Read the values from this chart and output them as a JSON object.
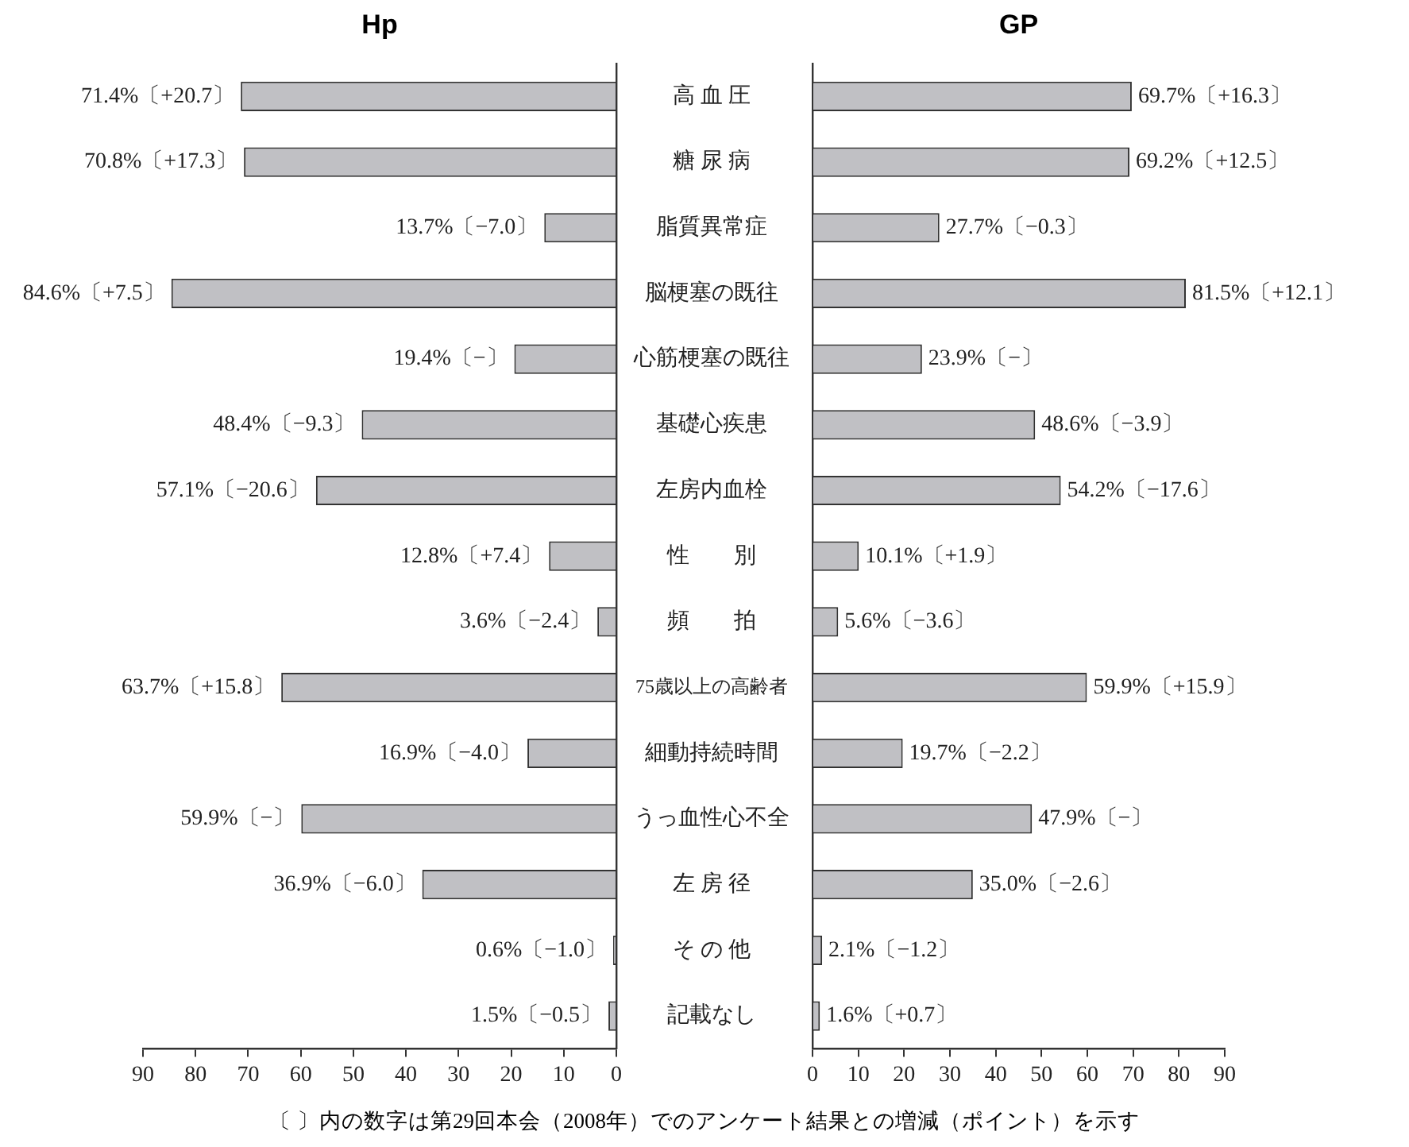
{
  "chart_data": [
    {
      "type": "bar",
      "orientation": "horizontal",
      "title": "Hp",
      "color": "#c0c0c4",
      "xlim": [
        90,
        0
      ],
      "xticks": [
        90,
        80,
        70,
        60,
        50,
        40,
        30,
        20,
        10,
        0
      ],
      "categories": [
        "高 血 圧",
        "糖 尿 病",
        "脂質異常症",
        "脳梗塞の既往",
        "心筋梗塞の既往",
        "基礎心疾患",
        "左房内血栓",
        "性　　別",
        "頻　　拍",
        "75歳以上の高齢者",
        "細動持続時間",
        "うっ血性心不全",
        "左 房 径",
        "そ の 他",
        "記載なし"
      ],
      "values": [
        71.4,
        70.8,
        13.7,
        84.6,
        19.4,
        48.4,
        57.1,
        12.8,
        3.6,
        63.7,
        16.9,
        59.9,
        36.9,
        0.6,
        1.5
      ],
      "value_labels": [
        "71.4%〔+20.7〕",
        "70.8%〔+17.3〕",
        "13.7%〔−7.0〕",
        "84.6%〔+7.5〕",
        "19.4%〔−〕",
        "48.4%〔−9.3〕",
        "57.1%〔−20.6〕",
        "12.8%〔+7.4〕",
        "3.6%〔−2.4〕",
        "63.7%〔+15.8〕",
        "16.9%〔−4.0〕",
        "59.9%〔−〕",
        "36.9%〔−6.0〕",
        "0.6%〔−1.0〕",
        "1.5%〔−0.5〕"
      ],
      "annotations": [
        "〔 〕内の数字は第29回本会（2008年）でのアンケート結果との増減（ポイント）を示す"
      ]
    },
    {
      "type": "bar",
      "orientation": "horizontal",
      "title": "GP",
      "color": "#c0c0c4",
      "xlim": [
        0,
        90
      ],
      "xticks": [
        0,
        10,
        20,
        30,
        40,
        50,
        60,
        70,
        80,
        90
      ],
      "tick_labels": "x",
      "categories": [
        null,
        null,
        null,
        null,
        null,
        null,
        null,
        null,
        null,
        null,
        null,
        null,
        null,
        null,
        null
      ],
      "values": [
        69.7,
        69.2,
        27.7,
        81.5,
        23.9,
        48.6,
        54.2,
        10.1,
        5.6,
        59.9,
        19.7,
        47.9,
        35.0,
        2.1,
        1.6
      ],
      "value_labels": [
        "69.7%〔+16.3〕",
        "69.2%〔+12.5〕",
        "27.7%〔−0.3〕",
        "81.5%〔+12.1〕",
        "23.9%〔−〕",
        "48.6%〔−3.9〕",
        "54.2%〔−17.6〕",
        "10.1%〔+1.9〕",
        "5.6%〔−3.6〕",
        "59.9%〔+15.9〕",
        "19.7%〔−2.2〕",
        "47.9%〔−〕",
        "35.0%〔−2.6〕",
        "2.1%〔−1.2〕",
        "1.6%〔+0.7〕"
      ]
    }
  ]
}
